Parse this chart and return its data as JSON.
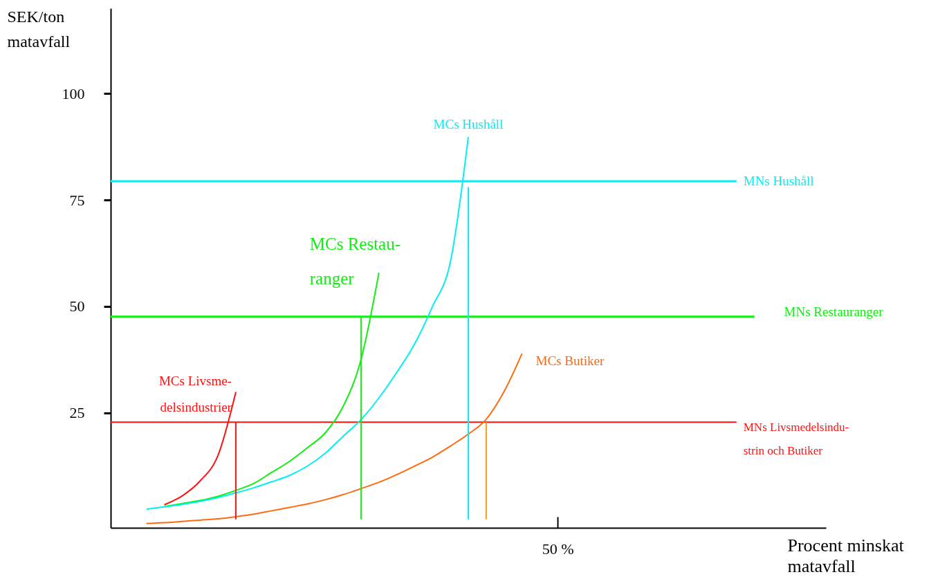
{
  "chart_data": {
    "type": "line",
    "xlabel": "Procent minskat\nmatavfall",
    "ylabel": "SEK/ton\nmatavfall",
    "categories": [
      null,
      null,
      null,
      null,
      null,
      null,
      null,
      null,
      null,
      null,
      null,
      null,
      null,
      null,
      null,
      null,
      null,
      null,
      null,
      null,
      null,
      null,
      null,
      null,
      null,
      "50 %",
      null,
      null,
      null,
      null,
      null,
      null,
      null,
      null,
      null,
      null,
      null,
      null,
      null,
      null,
      null
    ],
    "ylim": [
      -2,
      120
    ],
    "yticks": [
      25,
      50,
      75,
      100
    ],
    "grid": false,
    "series": [
      {
        "name": "MNs Hushåll",
        "color": "#00f0f5",
        "values": [
          79.4,
          79.4,
          79.4,
          79.4,
          79.4,
          79.4,
          79.4,
          79.4,
          79.4,
          79.4,
          79.4,
          79.4,
          79.4,
          79.4,
          79.4,
          79.4,
          79.4,
          79.4,
          79.4,
          79.4,
          79.4,
          79.4,
          79.4,
          79.4,
          79.4,
          79.4,
          79.4,
          79.4,
          79.4,
          79.4,
          79.4,
          79.4,
          79.4,
          79.4,
          79.4,
          79.4,
          null,
          null,
          null,
          null,
          null
        ]
      },
      {
        "name": "MNs Restauranger",
        "color": "#11ee11",
        "values": [
          47.6,
          47.6,
          47.6,
          47.6,
          47.6,
          47.6,
          47.6,
          47.6,
          47.6,
          47.6,
          47.6,
          47.6,
          47.6,
          47.6,
          47.6,
          47.6,
          47.6,
          47.6,
          47.6,
          47.6,
          47.6,
          47.6,
          47.6,
          47.6,
          47.6,
          47.6,
          47.6,
          47.6,
          47.6,
          47.6,
          47.6,
          47.6,
          47.6,
          47.6,
          47.6,
          47.6,
          47.6,
          null,
          null,
          null,
          null
        ]
      },
      {
        "name": "MNs Livsmedelsindu-\nstrin och Butiker",
        "color": "#ff1010",
        "values": [
          22.8,
          22.8,
          22.8,
          22.8,
          22.8,
          22.8,
          22.8,
          22.8,
          22.8,
          22.8,
          22.8,
          22.8,
          22.8,
          22.8,
          22.8,
          22.8,
          22.8,
          22.8,
          22.8,
          22.8,
          22.8,
          22.8,
          22.8,
          22.8,
          22.8,
          22.8,
          22.8,
          22.8,
          22.8,
          22.8,
          22.8,
          22.8,
          22.8,
          22.8,
          22.8,
          22.8,
          null,
          null,
          null,
          null,
          null
        ]
      },
      {
        "name": "MCs Livsme-\ndelsindustrier",
        "color": "#ff1010",
        "values": [
          null,
          null,
          null,
          3.4,
          5.5,
          9,
          15,
          29.9,
          null,
          null,
          null,
          null,
          null,
          null,
          null,
          null,
          null,
          null,
          null,
          null,
          null,
          null,
          null,
          null,
          null,
          null,
          null,
          null,
          null,
          null,
          null,
          null,
          null,
          null,
          null,
          null,
          null,
          null,
          null,
          null,
          null
        ]
      },
      {
        "name": "MCs Restau-\nranger",
        "color": "#11ee11",
        "values": [
          null,
          null,
          null,
          3,
          3.7,
          4.4,
          5.4,
          6.8,
          8.4,
          11,
          13.6,
          16.8,
          20.3,
          26.5,
          37.5,
          57.9,
          null,
          null,
          null,
          null,
          null,
          null,
          null,
          null,
          null,
          null,
          null,
          null,
          null,
          null,
          null,
          null,
          null,
          null,
          null,
          null,
          null,
          null,
          null,
          null,
          null
        ]
      },
      {
        "name": "MCs Hushåll",
        "color": "#00f0f5",
        "values": [
          null,
          null,
          2.4,
          2.9,
          3.5,
          4.2,
          5.1,
          6.2,
          7.4,
          8.8,
          10.3,
          12.5,
          15.5,
          19.5,
          23.4,
          28.5,
          34.5,
          41.2,
          50,
          60.5,
          89.8,
          null,
          null,
          null,
          null,
          null,
          null,
          null,
          null,
          null,
          null,
          null,
          null,
          null,
          null,
          null,
          null,
          null,
          null,
          null,
          null
        ]
      },
      {
        "name": "MCs Butiker",
        "color": "#ff6a10",
        "values": [
          null,
          null,
          -1,
          -0.8,
          -0.5,
          -0.2,
          0.1,
          0.6,
          1.2,
          2,
          2.8,
          3.6,
          4.6,
          5.8,
          7.2,
          8.7,
          10.5,
          12.5,
          14.6,
          17.2,
          20,
          23.5,
          30,
          38.9,
          null,
          null,
          null,
          null,
          null,
          null,
          null,
          null,
          null,
          null,
          null,
          null,
          null,
          null,
          null,
          null,
          null
        ]
      },
      {
        "type": "bar",
        "values": [
          null,
          null,
          null,
          null,
          null,
          null,
          null,
          22.8,
          null,
          null,
          null,
          null,
          null,
          null,
          47.6,
          null,
          null,
          null,
          null,
          null,
          78,
          22.8,
          null,
          null,
          null,
          null,
          null,
          null,
          null,
          null,
          null,
          null,
          null,
          null,
          null,
          null,
          null,
          null,
          null,
          null,
          null
        ],
        "colors": [
          null,
          null,
          null,
          null,
          null,
          null,
          null,
          "#ff1010",
          null,
          null,
          null,
          null,
          null,
          null,
          "#11ee11",
          null,
          null,
          null,
          null,
          null,
          "#00f0f5",
          "#ff9a10",
          null,
          null,
          null,
          null,
          null,
          null,
          null,
          null,
          null,
          null,
          null,
          null,
          null,
          null,
          null,
          null,
          null,
          null,
          null
        ]
      }
    ]
  }
}
